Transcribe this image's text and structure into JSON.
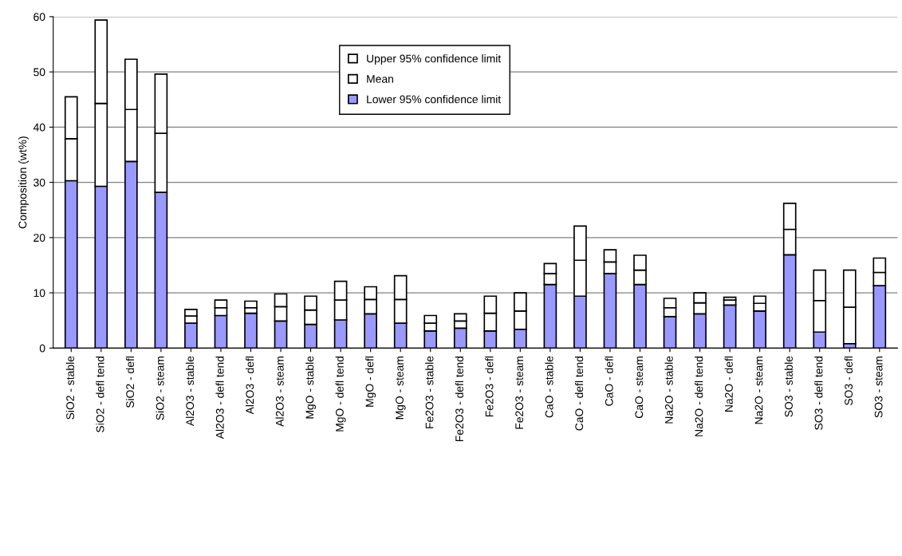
{
  "chart_data": {
    "type": "bar",
    "stacked": true,
    "ylabel": "Composition (wt%)",
    "categories": [
      "SiO2 - stable",
      "SiO2 - defl tend",
      "SiO2 - defl",
      "SiO2 - steam",
      "Al2O3 - stable",
      "Al2O3 - defl tend",
      "Al2O3 - defl",
      "Al2O3 - steam",
      "MgO - stable",
      "MgO - defl tend",
      "MgO - defl",
      "MgO - steam",
      "Fe2O3 - stable",
      "Fe2O3 - defl tend",
      "Fe2O3 - defl",
      "Fe2O3 - steam",
      "CaO - stable",
      "CaO - defl tend",
      "CaO - defl",
      "CaO - steam",
      "Na2O - stable",
      "Na2O - defl tend",
      "Na2O - defl",
      "Na2O - steam",
      "SO3 - stable",
      "SO3 - defl tend",
      "SO3 - defl",
      "SO3 - steam"
    ],
    "series": [
      {
        "name": "Lower 95% confidence limit",
        "color": "#9999ff",
        "values": [
          30.3,
          29.3,
          33.8,
          28.2,
          4.5,
          5.9,
          6.3,
          4.9,
          4.3,
          5.1,
          6.2,
          4.5,
          3.1,
          3.6,
          3.1,
          3.4,
          11.5,
          9.4,
          13.5,
          11.5,
          5.7,
          6.2,
          7.8,
          6.7,
          16.9,
          2.9,
          0.8,
          11.3
        ]
      },
      {
        "name": "Mean",
        "color": "#ffffff",
        "values": [
          7.6,
          15.0,
          9.4,
          10.7,
          1.3,
          1.4,
          1.0,
          2.6,
          2.6,
          3.6,
          2.6,
          4.3,
          1.4,
          1.3,
          3.2,
          3.3,
          2.0,
          6.5,
          2.1,
          2.6,
          1.6,
          2.0,
          0.9,
          1.4,
          4.6,
          5.7,
          6.6,
          2.4
        ]
      },
      {
        "name": "Upper 95% confidence limit",
        "color": "#ffffff",
        "values": [
          7.6,
          15.1,
          9.1,
          10.7,
          1.2,
          1.4,
          1.2,
          2.3,
          2.5,
          3.4,
          2.3,
          4.3,
          1.4,
          1.3,
          3.1,
          3.3,
          1.8,
          6.2,
          2.2,
          2.7,
          1.7,
          1.8,
          0.5,
          1.3,
          4.7,
          5.5,
          6.7,
          2.6
        ]
      }
    ],
    "ylim": [
      0,
      60
    ],
    "yticks": [
      0,
      10,
      20,
      30,
      40,
      50,
      60
    ],
    "grid": "y",
    "legend": "top"
  }
}
